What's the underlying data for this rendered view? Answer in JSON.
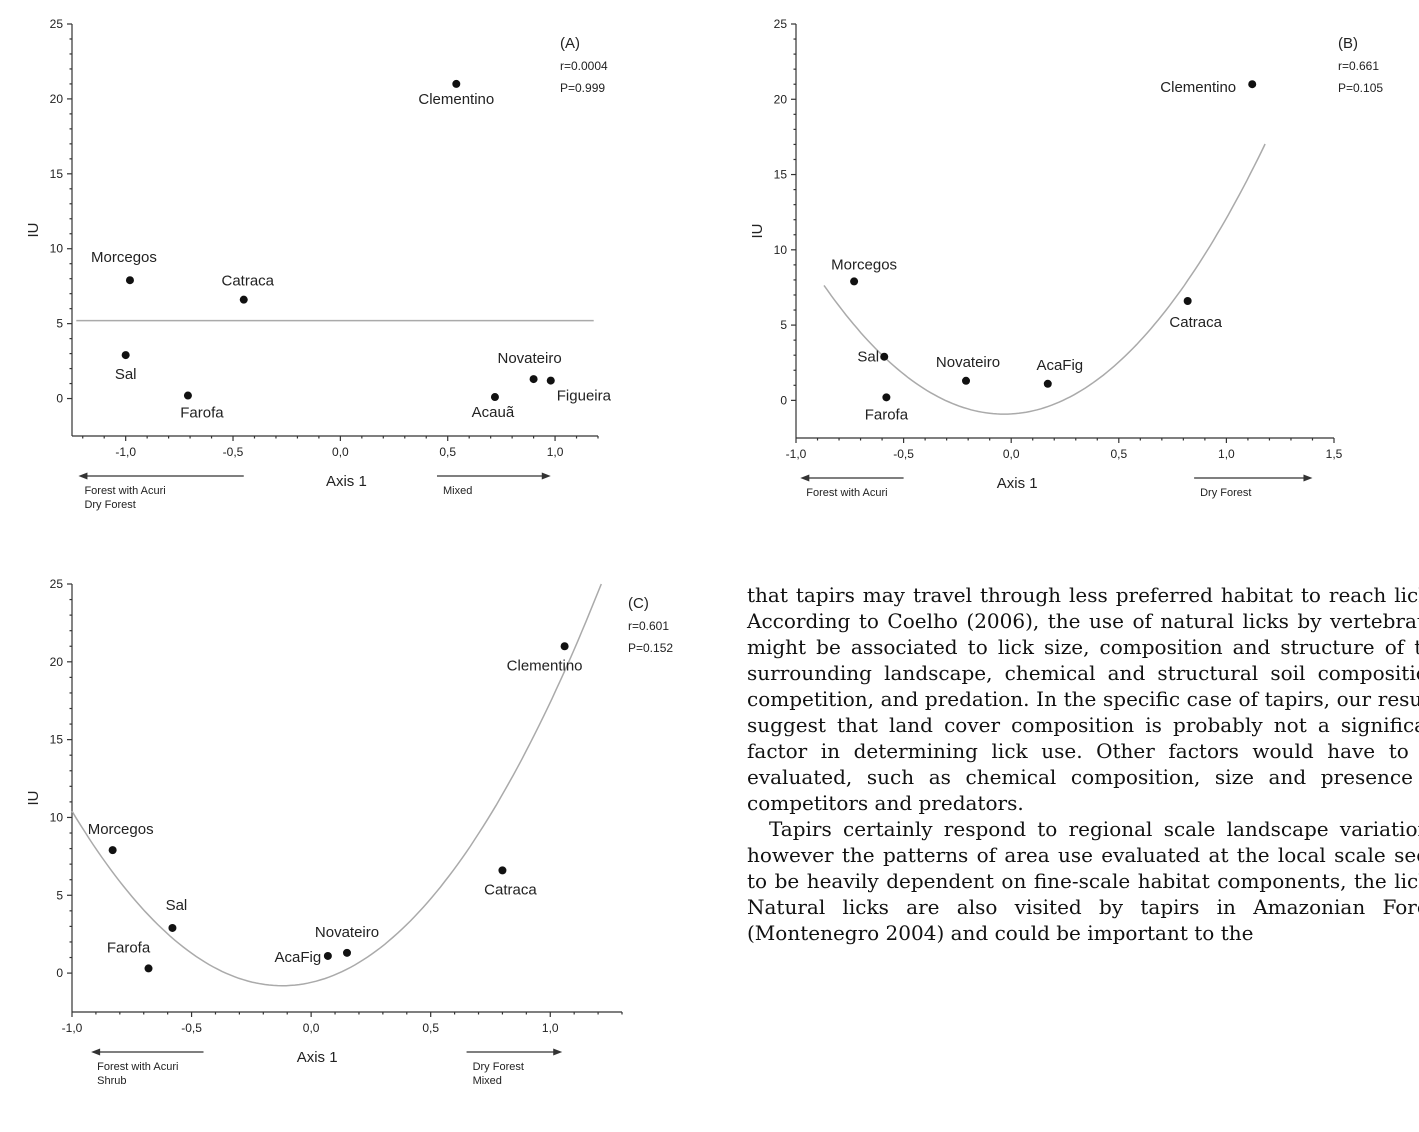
{
  "chart_data": [
    {
      "id": "A",
      "type": "scatter",
      "panel_label": "(A)",
      "stat_r": "r=0.0004",
      "stat_p": "P=0.999",
      "xlabel": "Axis 1",
      "ylabel": "IU",
      "xlim": [
        -1.25,
        1.2
      ],
      "ylim": [
        -2.5,
        25
      ],
      "xticks": [
        -1.0,
        -0.5,
        0.0,
        0.5,
        1.0
      ],
      "xtick_labels": [
        "-1,0",
        "-0,5",
        "0,0",
        "0,5",
        "1,0"
      ],
      "yticks": [
        0,
        5,
        10,
        15,
        20,
        25
      ],
      "ytick_labels": [
        "0",
        "5",
        "10",
        "15",
        "20",
        "25"
      ],
      "left_arrow_text": [
        "Forest with Acuri",
        "Dry Forest"
      ],
      "right_arrow_text": [
        "Mixed"
      ],
      "fit": {
        "type": "linear",
        "x": [
          -1.23,
          1.18
        ],
        "y": [
          5.2,
          5.2
        ]
      },
      "points": [
        {
          "name": "Clementino",
          "x": 0.54,
          "y": 21.0
        },
        {
          "name": "Morcegos",
          "x": -0.98,
          "y": 7.9
        },
        {
          "name": "Catraca",
          "x": -0.45,
          "y": 6.6
        },
        {
          "name": "Sal",
          "x": -1.0,
          "y": 2.9
        },
        {
          "name": "Farofa",
          "x": -0.71,
          "y": 0.2
        },
        {
          "name": "Novateiro",
          "x": 0.9,
          "y": 1.3
        },
        {
          "name": "Figueira",
          "x": 0.98,
          "y": 1.2
        },
        {
          "name": "Acauã",
          "x": 0.72,
          "y": 0.1
        }
      ]
    },
    {
      "id": "B",
      "type": "scatter",
      "panel_label": "(B)",
      "stat_r": "r=0.661",
      "stat_p": "P=0.105",
      "xlabel": "Axis 1",
      "ylabel": "IU",
      "xlim": [
        -1.0,
        1.5
      ],
      "ylim": [
        -2.5,
        25
      ],
      "xticks": [
        -1.0,
        -0.5,
        0.0,
        0.5,
        1.0,
        1.5
      ],
      "xtick_labels": [
        "-1,0",
        "-0,5",
        "0,0",
        "0,5",
        "1,0",
        "1,5"
      ],
      "yticks": [
        0,
        5,
        10,
        15,
        20,
        25
      ],
      "ytick_labels": [
        "0",
        "5",
        "10",
        "15",
        "20",
        "25"
      ],
      "left_arrow_text": [
        "Forest with Acuri"
      ],
      "right_arrow_text": [
        "Dry Forest"
      ],
      "fit": {
        "type": "quadratic",
        "a": 12.2,
        "b": 0.8,
        "c": -0.9,
        "xrange": [
          -0.87,
          1.18
        ]
      },
      "points": [
        {
          "name": "Clementino",
          "x": 1.12,
          "y": 21.0
        },
        {
          "name": "Morcegos",
          "x": -0.73,
          "y": 7.9
        },
        {
          "name": "Catraca",
          "x": 0.82,
          "y": 6.6
        },
        {
          "name": "Sal",
          "x": -0.59,
          "y": 2.9
        },
        {
          "name": "Novateiro",
          "x": -0.21,
          "y": 1.3
        },
        {
          "name": "AcaFig",
          "x": 0.17,
          "y": 1.1
        },
        {
          "name": "Farofa",
          "x": -0.58,
          "y": 0.2
        }
      ]
    },
    {
      "id": "C",
      "type": "scatter",
      "panel_label": "(C)",
      "stat_r": "r=0.601",
      "stat_p": "P=0.152",
      "xlabel": "Axis 1",
      "ylabel": "IU",
      "xlim": [
        -1.0,
        1.3
      ],
      "ylim": [
        -2.5,
        25
      ],
      "xticks": [
        -1.0,
        -0.5,
        0.0,
        0.5,
        1.0
      ],
      "xtick_labels": [
        "-1,0",
        "-0,5",
        "0,0",
        "0,5",
        "1,0"
      ],
      "yticks": [
        0,
        5,
        10,
        15,
        20,
        25
      ],
      "ytick_labels": [
        "0",
        "5",
        "10",
        "15",
        "20",
        "25"
      ],
      "left_arrow_text": [
        "Forest with Acuri",
        "Shrub"
      ],
      "right_arrow_text": [
        "Dry Forest",
        "Mixed"
      ],
      "fit": {
        "type": "quadratic",
        "a": 14.5,
        "b": 3.5,
        "c": -0.6,
        "xrange": [
          -1.0,
          1.15
        ]
      },
      "points": [
        {
          "name": "Clementino",
          "x": 1.06,
          "y": 21.0
        },
        {
          "name": "Morcegos",
          "x": -0.83,
          "y": 7.9
        },
        {
          "name": "Catraca",
          "x": 0.8,
          "y": 6.6
        },
        {
          "name": "Sal",
          "x": -0.58,
          "y": 2.9
        },
        {
          "name": "Farofa",
          "x": -0.68,
          "y": 0.3
        },
        {
          "name": "Novateiro",
          "x": 0.15,
          "y": 1.3
        },
        {
          "name": "AcaFig",
          "x": 0.07,
          "y": 1.1
        }
      ]
    }
  ],
  "body_text": {
    "paragraph_1": "that tapirs may travel through less preferred habitat to reach licks. According to Coelho (2006), the use of natural licks by vertebrates might be associated to lick size, composition and structure of the surrounding landscape, chemical and structural soil composition, competition, and predation. In the specific case of tapirs, our results suggest that land cover composition is probably not a significant factor in determining lick use. Other factors would have to be evaluated, such as chemical composition, size and presence of competitors and predators.",
    "paragraph_2": "Tapirs certainly respond to regional scale landscape variations, however the patterns of area use evaluated at the local scale seem to be heavily dependent on fine-scale habitat components, the licks. Natural licks are also visited by tapirs in Amazonian Forest (Montenegro 2004) and could be important to the"
  }
}
